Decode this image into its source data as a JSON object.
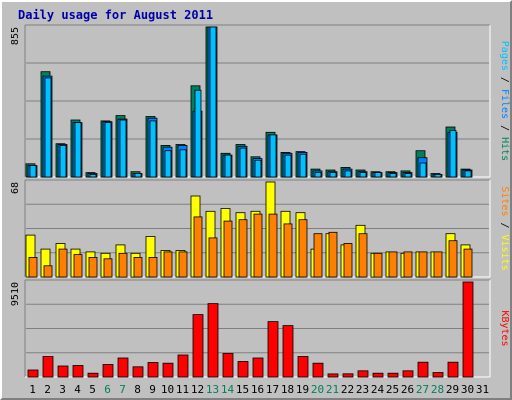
{
  "chart_data": {
    "type": "bar",
    "title": "Daily usage for August 2011",
    "categories": [
      "1",
      "2",
      "3",
      "4",
      "5",
      "6",
      "7",
      "8",
      "9",
      "10",
      "11",
      "12",
      "13",
      "14",
      "15",
      "16",
      "17",
      "18",
      "19",
      "20",
      "21",
      "22",
      "23",
      "24",
      "25",
      "26",
      "27",
      "28",
      "29",
      "30",
      "31"
    ],
    "weekend_days": [
      "6",
      "7",
      "13",
      "14",
      "20",
      "21",
      "27",
      "28"
    ],
    "colors": {
      "hits": "#00805c",
      "files": "#0080ff",
      "pages": "#00c0ff",
      "sites": "#ff8000",
      "visits": "#ffff00",
      "kbytes": "#ff0000",
      "weekend_label": "#00805c",
      "weekday_label": "#000000",
      "title": "#0000aa"
    },
    "panels": [
      {
        "name": "hits-files-pages",
        "ymax_label": "855",
        "ylim": [
          0,
          855
        ],
        "legend": [
          {
            "text": "Pages",
            "color": "#00c0ff"
          },
          {
            "text": "Files",
            "color": "#0080ff"
          },
          {
            "text": "Hits",
            "color": "#00805c"
          }
        ],
        "legend_sep": " / ",
        "series": [
          {
            "name": "Hits",
            "values": [
              75,
              600,
              190,
              325,
              25,
              320,
              350,
              30,
              345,
              180,
              185,
              520,
              855,
              135,
              185,
              115,
              255,
              140,
              145,
              45,
              40,
              55,
              40,
              30,
              30,
              35,
              150,
              20,
              285,
              45,
              0
            ]
          },
          {
            "name": "Files",
            "values": [
              65,
              575,
              185,
              310,
              20,
              315,
              330,
              20,
              335,
              170,
              180,
              375,
              855,
              125,
              175,
              105,
              240,
              135,
              140,
              35,
              30,
              45,
              30,
              25,
              25,
              25,
              110,
              15,
              255,
              40,
              0
            ]
          },
          {
            "name": "Pages",
            "values": [
              65,
              565,
              180,
              310,
              15,
              310,
              325,
              20,
              320,
              150,
              155,
              495,
              855,
              125,
              165,
              95,
              240,
              125,
              130,
              25,
              25,
              35,
              25,
              25,
              20,
              20,
              80,
              15,
              265,
              35,
              0
            ]
          }
        ]
      },
      {
        "name": "visits-sites",
        "ymax_label": "68",
        "ylim": [
          0,
          68
        ],
        "legend": [
          {
            "text": "Sites",
            "color": "#ff8000"
          },
          {
            "text": "Visits",
            "color": "#ffff00"
          }
        ],
        "legend_sep": " / ",
        "series": [
          {
            "name": "Visits",
            "values": [
              30,
              20,
              24,
              20,
              18,
              17,
              23,
              17,
              29,
              19,
              19,
              58,
              47,
              49,
              46,
              47,
              68,
              47,
              46,
              20,
              31,
              23,
              37,
              17,
              18,
              17,
              18,
              18,
              31,
              23,
              0
            ]
          },
          {
            "name": "Sites",
            "values": [
              14,
              8,
              20,
              16,
              14,
              13,
              17,
              14,
              14,
              18,
              18,
              43,
              28,
              40,
              41,
              45,
              45,
              38,
              41,
              31,
              32,
              24,
              31,
              17,
              18,
              18,
              18,
              18,
              26,
              20,
              0
            ]
          }
        ]
      },
      {
        "name": "kbytes",
        "ymax_label": "9510",
        "ylim": [
          0,
          9510
        ],
        "legend": [
          {
            "text": "KBytes",
            "color": "#ff0000"
          }
        ],
        "legend_sep": "",
        "series": [
          {
            "name": "KBytes",
            "values": [
              700,
              2050,
              1100,
              1150,
              380,
              1250,
              1900,
              1020,
              1450,
              1380,
              2200,
              6250,
              7350,
              2350,
              1550,
              1900,
              5550,
              5150,
              2050,
              1380,
              310,
              320,
              620,
              380,
              380,
              620,
              1480,
              450,
              1480,
              9510,
              0
            ]
          }
        ]
      }
    ]
  }
}
